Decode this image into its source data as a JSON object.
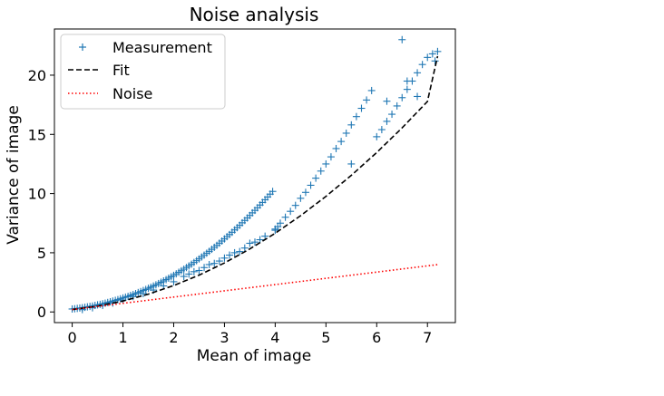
{
  "chart_data": {
    "type": "scatter",
    "title": "Noise analysis",
    "xlabel": "Mean of image",
    "ylabel": "Variance of image",
    "xlim": [
      -0.35,
      7.55
    ],
    "ylim": [
      -0.9,
      23.9
    ],
    "xticks": [
      0,
      1,
      2,
      3,
      4,
      5,
      6,
      7
    ],
    "yticks": [
      0,
      5,
      10,
      15,
      20
    ],
    "grid": false,
    "legend_position": "top-left",
    "series": [
      {
        "name": "Measurement",
        "kind": "markers",
        "marker": "+",
        "color": "#1f77b4",
        "x": [
          0.0,
          0.05,
          0.1,
          0.15,
          0.2,
          0.25,
          0.3,
          0.35,
          0.4,
          0.45,
          0.5,
          0.55,
          0.6,
          0.65,
          0.7,
          0.75,
          0.8,
          0.85,
          0.9,
          0.95,
          1.0,
          1.05,
          1.1,
          1.15,
          1.2,
          1.25,
          1.3,
          1.35,
          1.4,
          1.45,
          1.5,
          1.55,
          1.6,
          1.65,
          1.7,
          1.75,
          1.8,
          1.85,
          1.9,
          1.95,
          2.0,
          2.05,
          2.1,
          2.15,
          2.2,
          2.25,
          2.3,
          2.35,
          2.4,
          2.45,
          2.5,
          2.55,
          2.6,
          2.65,
          2.7,
          2.75,
          2.8,
          2.85,
          2.9,
          2.95,
          3.0,
          3.05,
          3.1,
          3.15,
          3.2,
          3.25,
          3.3,
          3.35,
          3.4,
          3.45,
          3.5,
          3.55,
          3.6,
          3.65,
          3.7,
          3.75,
          3.8,
          3.85,
          3.9,
          3.95,
          4.0,
          4.05,
          4.1,
          4.2,
          4.3,
          4.4,
          4.5,
          4.6,
          4.7,
          4.8,
          4.9,
          5.0,
          5.1,
          5.2,
          5.3,
          5.4,
          5.5,
          5.6,
          5.7,
          5.8,
          5.9,
          6.0,
          6.1,
          6.2,
          6.3,
          6.4,
          6.5,
          6.6,
          6.7,
          6.8,
          6.9,
          7.0,
          7.1,
          7.2,
          0.2,
          0.4,
          0.6,
          0.8,
          1.0,
          1.2,
          1.4,
          1.6,
          1.8,
          2.0,
          2.2,
          2.4,
          2.6,
          2.8,
          3.0,
          3.2,
          3.4,
          3.6,
          3.8,
          4.0,
          2.3,
          2.5,
          2.7,
          2.9,
          3.1,
          3.3,
          3.5,
          3.7,
          5.5,
          6.2,
          6.5,
          6.6,
          6.8,
          7.15
        ],
        "y": [
          0.25,
          0.27,
          0.3,
          0.33,
          0.36,
          0.39,
          0.43,
          0.47,
          0.5,
          0.55,
          0.6,
          0.64,
          0.69,
          0.74,
          0.8,
          0.86,
          0.92,
          0.98,
          1.04,
          1.11,
          1.18,
          1.25,
          1.32,
          1.4,
          1.47,
          1.55,
          1.64,
          1.72,
          1.81,
          1.9,
          2.0,
          2.09,
          2.19,
          2.29,
          2.4,
          2.51,
          2.62,
          2.73,
          2.85,
          2.97,
          3.09,
          3.22,
          3.35,
          3.48,
          3.61,
          3.75,
          3.89,
          4.03,
          4.18,
          4.33,
          4.48,
          4.64,
          4.8,
          4.96,
          5.12,
          5.29,
          5.46,
          5.63,
          5.81,
          5.99,
          6.17,
          6.36,
          6.54,
          6.73,
          6.93,
          7.12,
          7.32,
          7.53,
          7.73,
          7.94,
          8.15,
          8.37,
          8.58,
          8.8,
          9.03,
          9.25,
          9.48,
          9.71,
          9.95,
          10.18,
          6.9,
          7.2,
          7.5,
          8.0,
          8.5,
          9.0,
          9.6,
          10.1,
          10.7,
          11.3,
          11.9,
          12.5,
          13.1,
          13.8,
          14.4,
          15.1,
          15.8,
          16.5,
          17.2,
          17.9,
          18.7,
          14.8,
          15.4,
          16.1,
          16.7,
          17.4,
          18.1,
          18.8,
          19.5,
          20.2,
          20.9,
          21.5,
          21.8,
          22.0,
          0.2,
          0.35,
          0.55,
          0.75,
          1.0,
          1.3,
          1.55,
          1.85,
          2.2,
          2.55,
          3.0,
          3.4,
          3.75,
          4.1,
          4.55,
          5.0,
          5.4,
          5.9,
          6.4,
          7.0,
          3.2,
          3.5,
          4.0,
          4.3,
          4.8,
          5.1,
          5.8,
          6.1,
          12.5,
          17.8,
          23.0,
          19.5,
          18.2,
          21.2
        ]
      },
      {
        "name": "Fit",
        "kind": "line",
        "dash": "dashed",
        "color": "#000000",
        "x": [
          0,
          0.5,
          1,
          1.5,
          2,
          2.5,
          3,
          3.5,
          4,
          4.5,
          5,
          5.5,
          6,
          6.5,
          7,
          7.2
        ],
        "y": [
          0.2,
          0.49,
          0.92,
          1.5,
          2.23,
          3.11,
          4.14,
          5.32,
          6.65,
          8.13,
          9.76,
          11.54,
          13.47,
          15.55,
          17.78,
          21.6
        ]
      },
      {
        "name": "Noise",
        "kind": "line",
        "dash": "dotted",
        "color": "#ff0000",
        "x": [
          0,
          7.2
        ],
        "y": [
          0.2,
          4.0
        ]
      }
    ]
  }
}
